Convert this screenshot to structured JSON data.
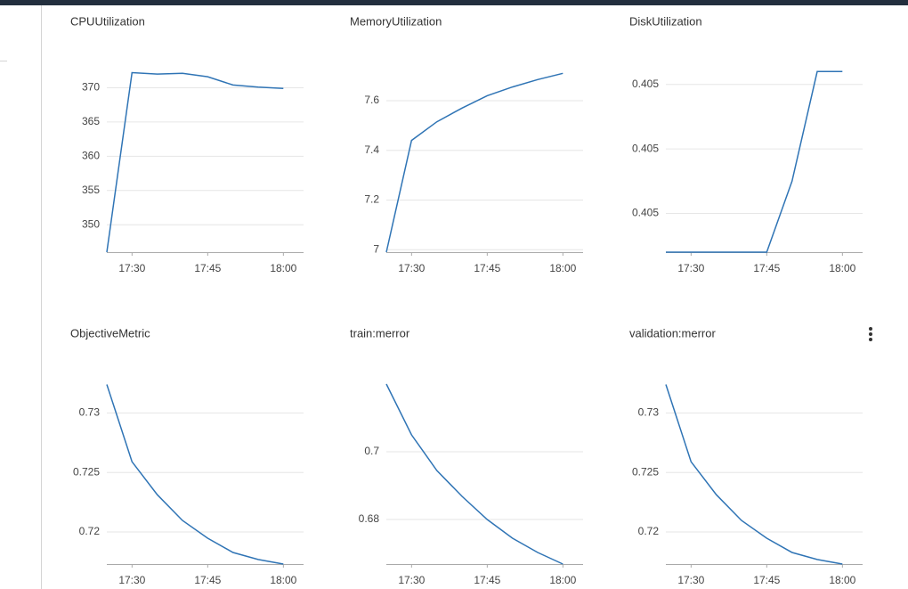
{
  "chart_data": [
    {
      "type": "line",
      "title": "CPUUtilization",
      "color": "#2f74b5",
      "grid": true,
      "x": [
        "17:25",
        "17:30",
        "17:35",
        "17:40",
        "17:45",
        "17:50",
        "17:55",
        "18:00"
      ],
      "values": [
        346,
        372.2,
        372.0,
        372.1,
        371.6,
        370.4,
        370.1,
        369.9
      ],
      "xlim": [
        "17:25",
        "18:04"
      ],
      "xticks": [
        "17:30",
        "17:45",
        "18:00"
      ],
      "ylim": [
        346,
        375
      ],
      "yticks": [
        350,
        355,
        360,
        365,
        370
      ]
    },
    {
      "type": "line",
      "title": "MemoryUtilization",
      "color": "#2f74b5",
      "grid": true,
      "x": [
        "17:25",
        "17:30",
        "17:35",
        "17:40",
        "17:45",
        "17:50",
        "17:55",
        "18:00"
      ],
      "values": [
        6.99,
        7.44,
        7.515,
        7.57,
        7.62,
        7.655,
        7.685,
        7.71
      ],
      "xlim": [
        "17:25",
        "18:04"
      ],
      "xticks": [
        "17:30",
        "17:45",
        "18:00"
      ],
      "ylim": [
        6.99,
        7.79
      ],
      "yticks": [
        7,
        7.2,
        7.4,
        7.6
      ]
    },
    {
      "type": "line",
      "title": "DiskUtilization",
      "color": "#2f74b5",
      "grid": true,
      "x": [
        "17:25",
        "17:30",
        "17:35",
        "17:40",
        "17:45",
        "17:50",
        "17:55",
        "18:00"
      ],
      "values": [
        0.40497,
        0.40497,
        0.40497,
        0.40497,
        0.40497,
        0.405025,
        0.40511,
        0.40511
      ],
      "xlim": [
        "17:25",
        "18:04"
      ],
      "xticks": [
        "17:30",
        "17:45",
        "18:00"
      ],
      "ylim": [
        0.40497,
        0.405124
      ],
      "yticks": [
        {
          "value": 0.405,
          "label": "0.405"
        },
        {
          "value": 0.40505,
          "label": "0.405"
        },
        {
          "value": 0.4051,
          "label": "0.405"
        }
      ]
    },
    {
      "type": "line",
      "title": "ObjectiveMetric",
      "color": "#2f74b5",
      "grid": true,
      "x": [
        "17:25",
        "17:30",
        "17:35",
        "17:40",
        "17:45",
        "17:50",
        "17:55",
        "18:00"
      ],
      "values": [
        0.73239,
        0.7259,
        0.72313,
        0.72097,
        0.71948,
        0.71828,
        0.71769,
        0.71731
      ],
      "xlim": [
        "17:25",
        "18:04"
      ],
      "xticks": [
        "17:30",
        "17:45",
        "18:00"
      ],
      "ylim": [
        0.71731,
        0.734
      ],
      "yticks": [
        0.72,
        0.725,
        0.73
      ]
    },
    {
      "type": "line",
      "title": "train:merror",
      "color": "#2f74b5",
      "grid": true,
      "x": [
        "17:25",
        "17:30",
        "17:35",
        "17:40",
        "17:45",
        "17:50",
        "17:55",
        "18:00"
      ],
      "values": [
        0.72,
        0.705,
        0.69447,
        0.68684,
        0.68,
        0.67447,
        0.67026,
        0.66684
      ],
      "xlim": [
        "17:25",
        "18:04"
      ],
      "xticks": [
        "17:30",
        "17:45",
        "18:00"
      ],
      "ylim": [
        0.66684,
        0.72553
      ],
      "yticks": [
        0.68,
        0.7
      ]
    },
    {
      "type": "line",
      "title": "validation:merror",
      "color": "#2f74b5",
      "grid": true,
      "x": [
        "17:25",
        "17:30",
        "17:35",
        "17:40",
        "17:45",
        "17:50",
        "17:55",
        "18:00"
      ],
      "values": [
        0.73239,
        0.7259,
        0.72313,
        0.72097,
        0.71948,
        0.71828,
        0.71769,
        0.71731
      ],
      "xlim": [
        "17:25",
        "18:04"
      ],
      "xticks": [
        "17:30",
        "17:45",
        "18:00"
      ],
      "ylim": [
        0.71731,
        0.734
      ],
      "yticks": [
        0.72,
        0.725,
        0.73
      ]
    }
  ]
}
